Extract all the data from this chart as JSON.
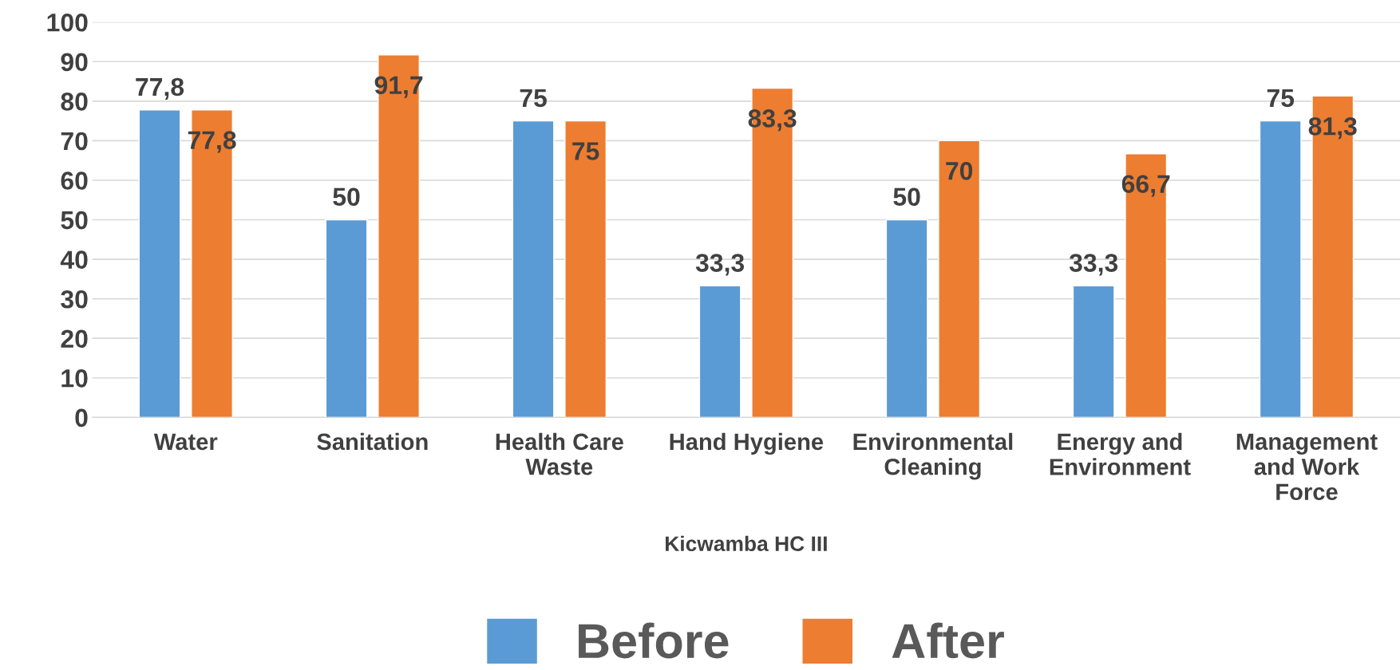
{
  "chart_data": {
    "type": "bar",
    "xlabel": "Kicwamba HC III",
    "categories": [
      "Water",
      "Sanitation",
      "Health Care\nWaste",
      "Hand Hygiene",
      "Environmental\nCleaning",
      "Energy and\nEnvironment",
      "Management\nand Work\nForce"
    ],
    "series": [
      {
        "name": "Before",
        "color": "#5b9bd5",
        "values": [
          77.8,
          50,
          75,
          33.3,
          50,
          33.3,
          75
        ],
        "value_labels": [
          "77,8",
          "50",
          "75",
          "33,3",
          "50",
          "33,3",
          "75"
        ]
      },
      {
        "name": "After",
        "color": "#ed7d31",
        "values": [
          77.8,
          91.7,
          75,
          83.3,
          70,
          66.7,
          81.3
        ],
        "value_labels": [
          "77,8",
          "91,7",
          "75",
          "83,3",
          "70",
          "66,7",
          "81,3"
        ]
      }
    ],
    "ylim": [
      0,
      100
    ],
    "yticks": [
      0,
      10,
      20,
      30,
      40,
      50,
      60,
      70,
      80,
      90,
      100
    ],
    "grid": "y",
    "legend": "bottom"
  }
}
